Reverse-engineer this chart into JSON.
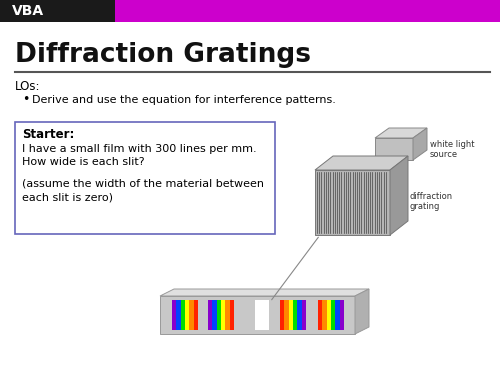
{
  "slide_bg": "#ffffff",
  "header_color": "#cc00cc",
  "header_black": "#1a1a1a",
  "header_text": "VBA",
  "header_text_color": "#ffffff",
  "title_text": "Diffraction Gratings",
  "title_color": "#111111",
  "divider_color": "#555555",
  "los_label": "LOs:",
  "bullet_text": "Derive and use the equation for interference patterns.",
  "box_border_color": "#6666bb",
  "box_bg": "#ffffff",
  "starter_bold": "Starter:",
  "starter_line1": "I have a small film with 300 lines per mm.",
  "starter_line2": "How wide is each slit?",
  "starter_line3": "(assume the width of the material between",
  "starter_line4": "each slit is zero)",
  "label_white_light": "white light\nsource",
  "label_diffraction": "diffraction\ngrating",
  "rainbow_colors_fwd": [
    "#ff2200",
    "#ff8800",
    "#ffff00",
    "#00dd00",
    "#0044ff",
    "#8800cc"
  ],
  "rainbow_colors_rev": [
    "#8800cc",
    "#0044ff",
    "#00dd00",
    "#ffff00",
    "#ff8800",
    "#ff2200"
  ]
}
